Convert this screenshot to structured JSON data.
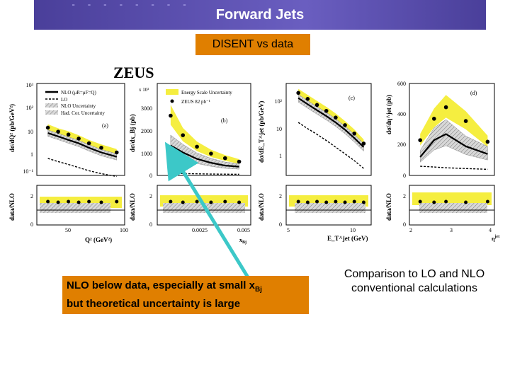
{
  "slide": {
    "title": "Forward Jets",
    "subtitle": "DISENT  vs data",
    "callout_line1": "NLO below data, especially at small x",
    "callout_sub": "Bj",
    "callout_line2": "but theoretical uncertainty is large",
    "note": "Comparison to LO and NLO conventional calculations",
    "experiment": "ZEUS"
  },
  "colors": {
    "banner": "#5a4fb0",
    "box": "#e07f00",
    "band": "#f5ee40",
    "arrow": "#3cc8c8"
  },
  "chart_data": [
    {
      "type": "line",
      "panel": "a",
      "ylabel": "dσ/dQ² (pb/GeV²)",
      "xlabel": "Q² (GeV²)",
      "yscale": "log",
      "yticks": [
        "10⁻¹",
        "1",
        "10",
        "10²",
        "10³"
      ],
      "xticks": [
        "50",
        "100"
      ],
      "legend": [
        "NLO (μR=μF=Q)",
        "LO",
        "NLO Uncertainty",
        "Had. Cor. Uncertainty"
      ],
      "x": [
        28,
        38,
        48,
        58,
        68,
        80,
        95
      ],
      "series": [
        {
          "name": "data",
          "values": [
            12,
            8,
            6,
            4,
            2.5,
            1.6,
            1.0
          ]
        },
        {
          "name": "NLO (μR=μF=Q)",
          "values": [
            7,
            5,
            3.5,
            2.5,
            1.6,
            1.0,
            0.65
          ]
        },
        {
          "name": "LO",
          "values": [
            0.55,
            0.4,
            0.3,
            0.22,
            0.16,
            0.12,
            0.09
          ]
        }
      ]
    },
    {
      "type": "line",
      "panel": "b",
      "ylabel": "dσ/dx_Bj (pb)",
      "yunit": "x 10²",
      "yticks": [
        "0",
        "1000",
        "2000",
        "3000"
      ],
      "xticks": [
        "0.0025",
        "0.005"
      ],
      "legend": [
        "Energy Scale Uncertainty",
        "ZEUS 82 pb⁻¹"
      ],
      "x": [
        0.0006,
        0.0013,
        0.0021,
        0.0029,
        0.0037,
        0.0045
      ],
      "series": [
        {
          "name": "ZEUS 82 pb⁻¹",
          "values": [
            2600,
            1750,
            1250,
            950,
            750,
            600
          ]
        },
        {
          "name": "NLO",
          "values": [
            1300,
            1000,
            720,
            550,
            430,
            380
          ]
        },
        {
          "name": "LO",
          "values": [
            90,
            80,
            70,
            60,
            55,
            50
          ]
        }
      ]
    },
    {
      "type": "line",
      "panel": "c",
      "ylabel": "dσ/dE_T^jet (pb/GeV)",
      "xlabel": "E_T^jet (GeV)",
      "yscale": "log",
      "yticks": [
        "1",
        "10",
        "10²"
      ],
      "xticks": [
        "5",
        "10"
      ],
      "x": [
        6,
        7,
        8,
        9,
        10,
        11,
        12,
        13
      ],
      "series": [
        {
          "name": "data",
          "values": [
            230,
            140,
            85,
            52,
            30,
            16,
            8,
            3.5
          ]
        },
        {
          "name": "NLO",
          "values": [
            150,
            90,
            55,
            34,
            20,
            11,
            5.5,
            2.6
          ]
        },
        {
          "name": "LO",
          "values": [
            20,
            12,
            7.5,
            4.5,
            2.6,
            1.5,
            0.85,
            0.45
          ]
        }
      ]
    },
    {
      "type": "line",
      "panel": "d",
      "ylabel": "dσ/dη^jet (pb)",
      "yticks": [
        "0",
        "200",
        "400",
        "600"
      ],
      "xticks": [
        "2",
        "3",
        "4"
      ],
      "x": [
        2.2,
        2.55,
        2.85,
        3.35,
        3.9
      ],
      "series": [
        {
          "name": "data",
          "values": [
            230,
            370,
            445,
            355,
            220
          ]
        },
        {
          "name": "NLO",
          "values": [
            120,
            230,
            270,
            190,
            140
          ]
        },
        {
          "name": "LO",
          "values": [
            60,
            55,
            50,
            45,
            40
          ]
        }
      ]
    }
  ],
  "ratio_axes": {
    "ylabel": "data/NLO",
    "yticks": [
      "0",
      "2"
    ]
  }
}
